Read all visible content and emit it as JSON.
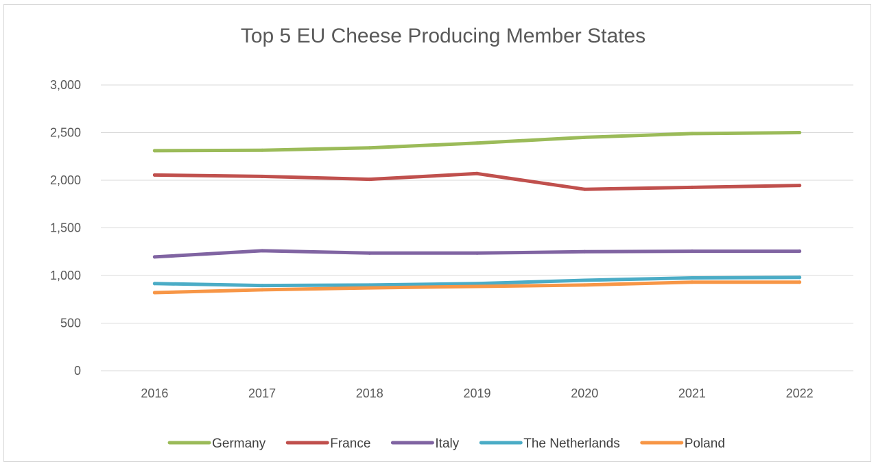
{
  "chart_data": {
    "type": "line",
    "title": "Top 5 EU Cheese Producing Member States",
    "xlabel": "",
    "ylabel": "",
    "categories": [
      "2016",
      "2017",
      "2018",
      "2019",
      "2020",
      "2021",
      "2022"
    ],
    "ylim": [
      0,
      3000
    ],
    "yticks": [
      0,
      500,
      1000,
      1500,
      2000,
      2500,
      3000
    ],
    "ytick_labels": [
      "0",
      "500",
      "1,000",
      "1,500",
      "2,000",
      "2,500",
      "3,000"
    ],
    "grid": true,
    "legend_position": "bottom",
    "series": [
      {
        "name": "Germany",
        "color": "#9bbb59",
        "values": [
          2310,
          2315,
          2340,
          2390,
          2450,
          2490,
          2500
        ]
      },
      {
        "name": "France",
        "color": "#c0504d",
        "values": [
          2055,
          2040,
          2010,
          2070,
          1905,
          1925,
          1945
        ]
      },
      {
        "name": "Italy",
        "color": "#8064a2",
        "values": [
          1195,
          1260,
          1235,
          1235,
          1250,
          1255,
          1255
        ]
      },
      {
        "name": "The Netherlands",
        "color": "#4bacc6",
        "values": [
          915,
          895,
          900,
          915,
          950,
          975,
          980
        ]
      },
      {
        "name": "Poland",
        "color": "#f79646",
        "values": [
          820,
          850,
          870,
          885,
          900,
          930,
          930
        ]
      }
    ]
  }
}
